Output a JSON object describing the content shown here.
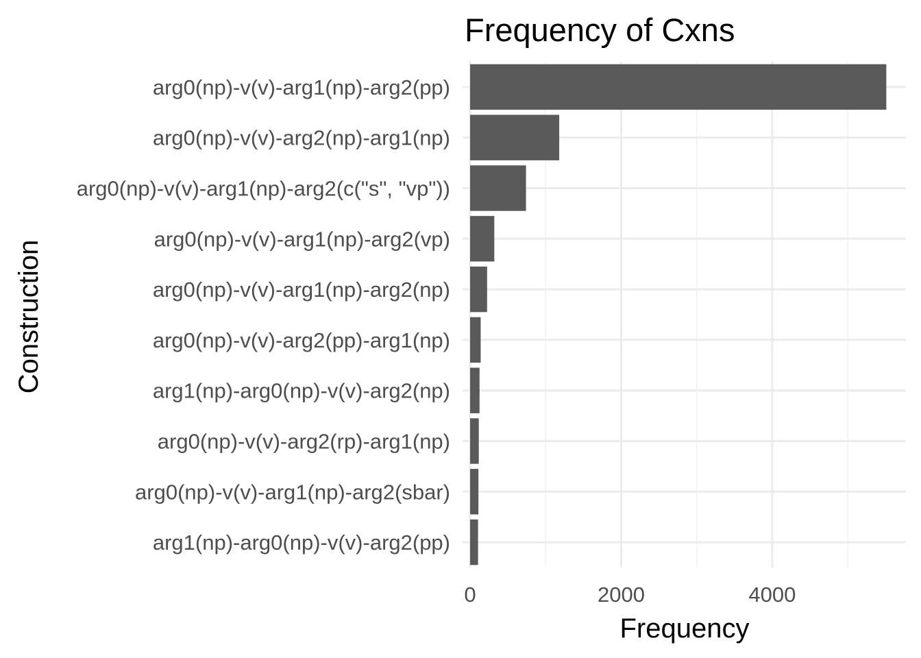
{
  "chart_data": {
    "type": "bar",
    "orientation": "horizontal",
    "title": "Frequency of Cxns",
    "xlabel": "Frequency",
    "ylabel": "Construction",
    "categories": [
      "arg0(np)-v(v)-arg1(np)-arg2(pp)",
      "arg0(np)-v(v)-arg2(np)-arg1(np)",
      "arg0(np)-v(v)-arg1(np)-arg2(c(\"s\", \"vp\"))",
      "arg0(np)-v(v)-arg1(np)-arg2(vp)",
      "arg0(np)-v(v)-arg1(np)-arg2(np)",
      "arg0(np)-v(v)-arg2(pp)-arg1(np)",
      "arg1(np)-arg0(np)-v(v)-arg2(np)",
      "arg0(np)-v(v)-arg2(rp)-arg1(np)",
      "arg0(np)-v(v)-arg1(np)-arg2(sbar)",
      "arg1(np)-arg0(np)-v(v)-arg2(pp)"
    ],
    "values": [
      5510,
      1180,
      740,
      320,
      225,
      140,
      125,
      115,
      110,
      105
    ],
    "xlim": [
      -100,
      5770
    ],
    "xticks": [
      0,
      2000,
      4000
    ],
    "xtick_labels": [
      "0",
      "2000",
      "4000"
    ],
    "grid": true,
    "legend": "none",
    "colors": {
      "bar": "#595959",
      "grid_major": "#ebebeb",
      "grid_minor": "#f2f2f2",
      "tick_text": "#4d4d4d",
      "title_text": "#000000"
    }
  }
}
